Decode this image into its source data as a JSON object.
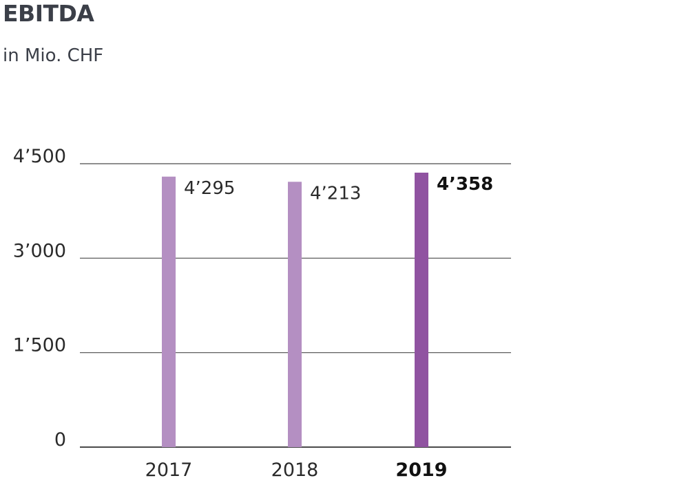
{
  "chart_data": {
    "type": "bar",
    "title": "EBITDA",
    "subtitle": "in Mio. CHF",
    "categories": [
      "2017",
      "2018",
      "2019"
    ],
    "values": [
      4295,
      4213,
      4358
    ],
    "value_labels": [
      "4’295",
      "4’213",
      "4’358"
    ],
    "highlight_index": 2,
    "ylim": [
      0,
      4500
    ],
    "yticks": [
      0,
      1500,
      3000,
      4500
    ],
    "ytick_labels": [
      "0",
      "1’500",
      "3’000",
      "4’500"
    ],
    "grid": true,
    "legend": "none",
    "colors": {
      "bar": "#b48fc2",
      "bar_highlight": "#9053a1",
      "gridline": "#4a4a4a",
      "text": "#2a2a2a",
      "title": "#3b3f48"
    }
  }
}
